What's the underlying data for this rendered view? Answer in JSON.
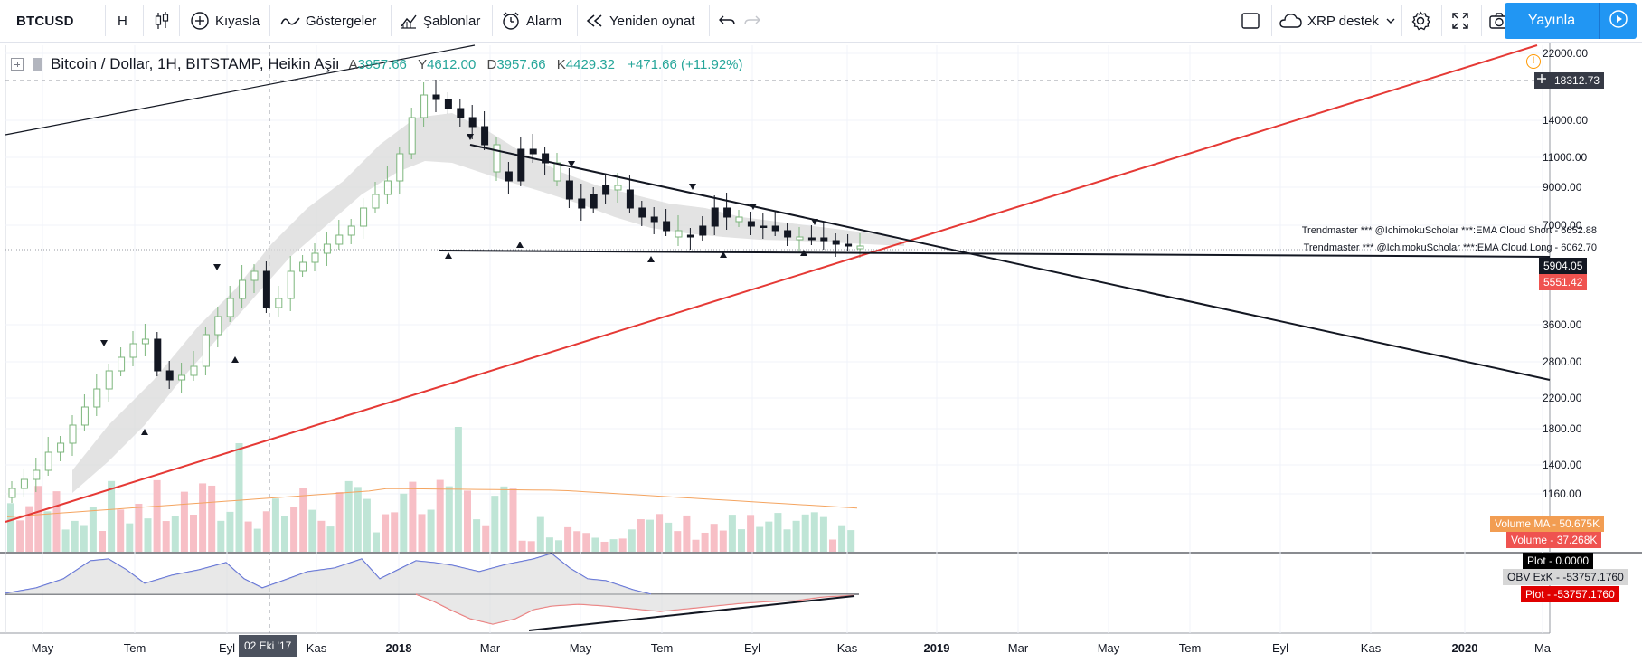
{
  "toolbar": {
    "symbol": "BTCUSD",
    "interval": "H",
    "compare_label": "Kıyasla",
    "indicators_label": "Göstergeler",
    "templates_label": "Şablonlar",
    "alert_label": "Alarm",
    "replay_label": "Yeniden oynat",
    "watch_label": "XRP destek",
    "publish_label": "Yayınla"
  },
  "legend": {
    "title": "Bitcoin / Dollar, 1H, BITSTAMP, Heikin Aşiı",
    "open_key": "A",
    "open": "3957.66",
    "high_key": "Y",
    "high": "4612.00",
    "low_key": "D",
    "low": "3957.66",
    "close_key": "K",
    "close": "4429.32",
    "change": "+471.66 (+11.92%)"
  },
  "price_axis": {
    "labels": [
      "22000.00",
      "14000.00",
      "11000.00",
      "9000.00",
      "7000.00",
      "3600.00",
      "2800.00",
      "2200.00",
      "1800.00",
      "1400.00",
      "1160.00"
    ],
    "crosshair_price": "18312.73",
    "last_price": "5904.05",
    "low_marker": "5551.42",
    "ema_short_value": "6652.88",
    "ema_long_value": "6062.70"
  },
  "indicator_labels": {
    "ema_short": "Trendmaster *** @IchimokuScholar ***:EMA Cloud Short",
    "ema_long": "Trendmaster *** @IchimokuScholar ***:EMA Cloud Long",
    "volume_ma_label": "Volume MA",
    "volume_ma_value": "50.675K",
    "volume_label": "Volume",
    "volume_value": "37.268K",
    "plot_label": "Plot",
    "plot_value": "0.0000",
    "obv_label": "OBV ExK",
    "obv_value": "-53757.1760",
    "plot2_label": "Plot",
    "plot2_value": "-53757.1760"
  },
  "time_axis": {
    "labels": [
      "May",
      "Tem",
      "Eyl",
      "Kas",
      "2018",
      "Mar",
      "May",
      "Tem",
      "Eyl",
      "Kas",
      "2019",
      "Mar",
      "May",
      "Tem",
      "Eyl",
      "Kas",
      "2020",
      "Ma"
    ],
    "crosshair_date": "02 Eki '17"
  },
  "colors": {
    "up": "#26a69a",
    "down": "#131722",
    "trend_red": "#e53935",
    "trend_black": "#131722",
    "cloud": "#d9d9d9",
    "volume_up": "#bfe5d6",
    "volume_down": "#f7bfc6",
    "obv_pos": "#4b5fd6",
    "obv_neg": "#ef6b6b",
    "accent": "#2196f3"
  },
  "icons": {
    "candles": "candlestick-icon",
    "compare": "plus-circle-icon",
    "indicators": "wave-icon",
    "templates": "templates-icon",
    "alert": "alarm-clock-icon",
    "replay": "rewind-icon",
    "undo": "undo-icon",
    "redo": "redo-icon",
    "fullscreen": "square-icon",
    "cloud": "cloud-icon",
    "settings": "gear-icon",
    "expand": "expand-icon",
    "camera": "camera-icon",
    "play": "play-icon"
  }
}
